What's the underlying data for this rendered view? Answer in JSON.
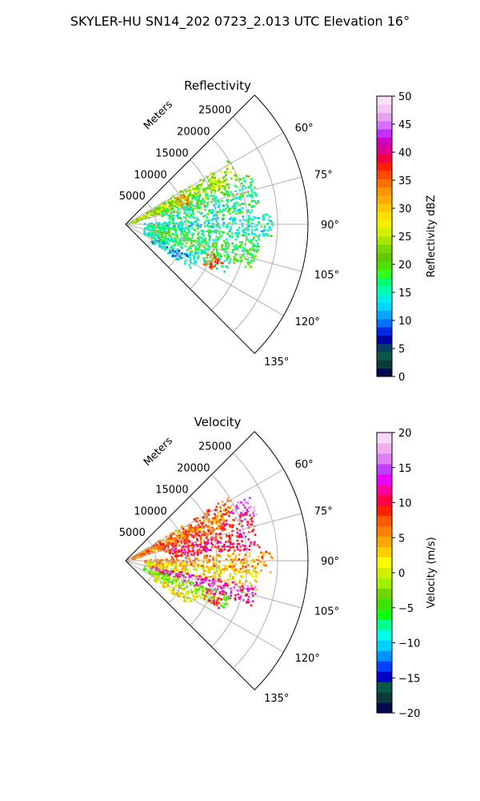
{
  "figure": {
    "title": "SKYLER-HU  SN14_202  0723_2.013 UTC Elevation 16°"
  },
  "chart_data": [
    {
      "type": "polar-sector",
      "panel": "reflectivity",
      "title": "Reflectivity",
      "r_label": "Meters",
      "theta_range_deg": [
        45,
        135
      ],
      "theta_ticks": [
        60,
        75,
        90,
        105,
        120,
        135
      ],
      "theta_tick_labels": [
        "60°",
        "75°",
        "90°",
        "105°",
        "120°",
        "135°"
      ],
      "r_range": [
        0,
        30000
      ],
      "r_ticks": [
        5000,
        10000,
        15000,
        20000,
        25000
      ],
      "r_tick_labels": [
        "5000",
        "10000",
        "15000",
        "20000",
        "25000"
      ],
      "grid": true,
      "colorbar": {
        "label": "Reflectivity dBZ",
        "range": [
          0,
          50
        ],
        "ticks": [
          0,
          5,
          10,
          15,
          20,
          25,
          30,
          35,
          40,
          45,
          50
        ],
        "tick_labels": [
          "0",
          "5",
          "10",
          "15",
          "20",
          "25",
          "30",
          "35",
          "40",
          "45",
          "50"
        ],
        "colormap": "pyart_NWSRef"
      },
      "features": [
        {
          "az": 62,
          "r_min": 1000,
          "r_max": 20000,
          "value": 23
        },
        {
          "az": 67,
          "r_min": 1000,
          "r_max": 18000,
          "value": 24
        },
        {
          "az": 72,
          "r_min": 6000,
          "r_max": 22000,
          "value": 18
        },
        {
          "az": 80,
          "r_min": 7000,
          "r_max": 22000,
          "value": 16
        },
        {
          "az": 90,
          "r_min": 3000,
          "r_max": 24000,
          "value": 15
        },
        {
          "az": 98,
          "r_min": 3000,
          "r_max": 22000,
          "value": 17
        },
        {
          "az": 105,
          "r_min": 4000,
          "r_max": 22000,
          "value": 19
        },
        {
          "az": 112,
          "r_min": 3000,
          "r_max": 18000,
          "value": 16
        },
        {
          "az": 120,
          "r_min": 5000,
          "r_max": 13000,
          "value": 13
        },
        {
          "az": 113,
          "r_min": 14000,
          "r_max": 17000,
          "value": 36
        },
        {
          "az": 66,
          "r_min": 9000,
          "r_max": 11000,
          "value": 34
        }
      ]
    },
    {
      "type": "polar-sector",
      "panel": "velocity",
      "title": "Velocity",
      "r_label": "Meters",
      "theta_range_deg": [
        45,
        135
      ],
      "theta_ticks": [
        60,
        75,
        90,
        105,
        120,
        135
      ],
      "theta_tick_labels": [
        "60°",
        "75°",
        "90°",
        "105°",
        "120°",
        "135°"
      ],
      "r_range": [
        0,
        30000
      ],
      "r_ticks": [
        5000,
        10000,
        15000,
        20000,
        25000
      ],
      "r_tick_labels": [
        "5000",
        "10000",
        "15000",
        "20000",
        "25000"
      ],
      "grid": true,
      "colorbar": {
        "label": "Velocity (m/s)",
        "range": [
          -20,
          20
        ],
        "ticks": [
          -20,
          -15,
          -10,
          -5,
          0,
          5,
          10,
          15,
          20
        ],
        "tick_labels": [
          "−20",
          "−15",
          "−10",
          "−5",
          "0",
          "5",
          "10",
          "15",
          "20"
        ],
        "colormap": "pyart_BuDRd18"
      },
      "features": [
        {
          "az": 62,
          "r_min": 1000,
          "r_max": 20000,
          "value": 7
        },
        {
          "az": 67,
          "r_min": 1000,
          "r_max": 18000,
          "value": 6
        },
        {
          "az": 72,
          "r_min": 6000,
          "r_max": 22000,
          "value": 9
        },
        {
          "az": 80,
          "r_min": 7000,
          "r_max": 22000,
          "value": 10
        },
        {
          "az": 90,
          "r_min": 3000,
          "r_max": 24000,
          "value": 5
        },
        {
          "az": 98,
          "r_min": 3000,
          "r_max": 22000,
          "value": 2
        },
        {
          "az": 105,
          "r_min": 4000,
          "r_max": 22000,
          "value": 13
        },
        {
          "az": 112,
          "r_min": 3000,
          "r_max": 18000,
          "value": -3
        },
        {
          "az": 120,
          "r_min": 5000,
          "r_max": 13000,
          "value": 1
        },
        {
          "az": 113,
          "r_min": 14000,
          "r_max": 17000,
          "value": 9
        },
        {
          "az": 66,
          "r_min": 19000,
          "r_max": 23000,
          "value": 16
        }
      ]
    }
  ]
}
